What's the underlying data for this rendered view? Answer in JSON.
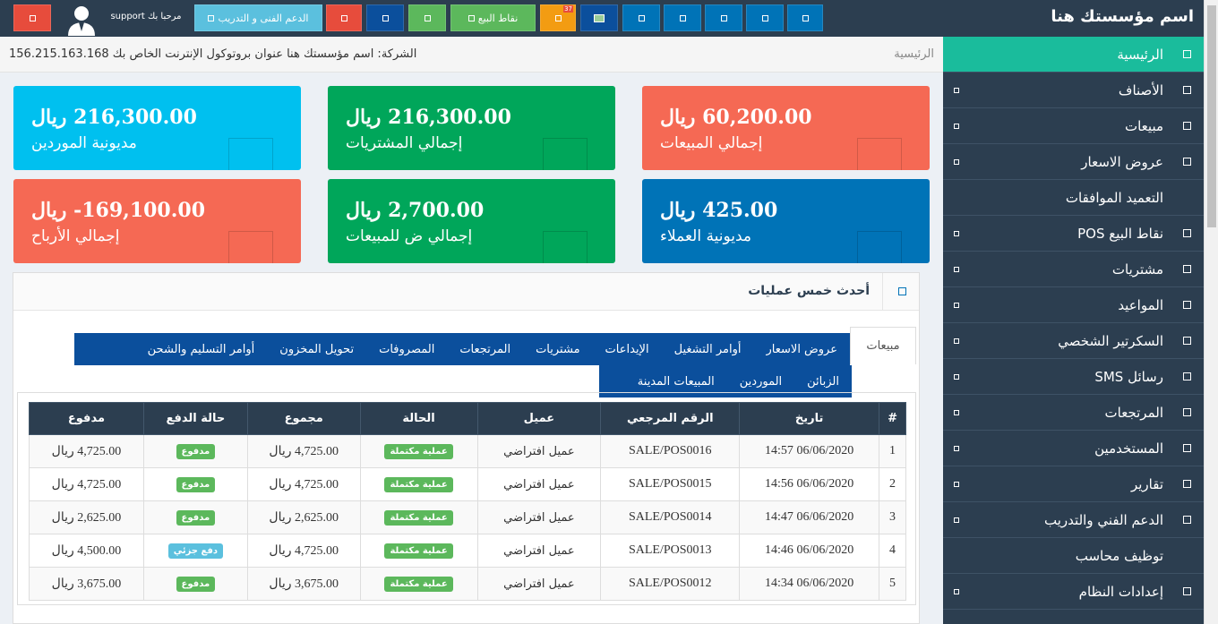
{
  "brand": "اسم مؤسستك هنا",
  "topbar": {
    "welcome": "مرحبا بك support",
    "support_btn": "الدعم الفنى و التدريب",
    "pos_btn": "نقاط البيع",
    "notif_count": "37"
  },
  "sidebar": {
    "items": [
      {
        "label": "الرئيسية"
      },
      {
        "label": "الأصناف"
      },
      {
        "label": "مبيعات"
      },
      {
        "label": "عروض الاسعار"
      },
      {
        "label": "التعميد الموافقات"
      },
      {
        "label": "نقاط البيع POS"
      },
      {
        "label": "مشتريات"
      },
      {
        "label": "المواعيد"
      },
      {
        "label": "السكرتير الشخصي"
      },
      {
        "label": "رسائل SMS"
      },
      {
        "label": "المرتجعات"
      },
      {
        "label": "المستخدمين"
      },
      {
        "label": "تقارير"
      },
      {
        "label": "الدعم الفني والتدريب"
      },
      {
        "label": "توظيف محاسب"
      },
      {
        "label": "إعدادات النظام"
      }
    ]
  },
  "crumb": {
    "home": "الرئيسية",
    "info": "الشركة: اسم مؤسستك هنا عنوان بروتوكول الإنترنت الخاص بك 156.215.163.168"
  },
  "cards": [
    {
      "value": "216,300.00 ريال",
      "label": "مديونية الموردين"
    },
    {
      "value": "216,300.00 ريال",
      "label": "إجمالي المشتريات"
    },
    {
      "value": "60,200.00 ريال",
      "label": "إجمالي المبيعات"
    },
    {
      "value": "169,100.00- ريال",
      "label": "إجمالي الأرباح"
    },
    {
      "value": "2,700.00 ريال",
      "label": "إجمالي ض للمبيعات"
    },
    {
      "value": "425.00 ريال",
      "label": "مديونية العملاء"
    }
  ],
  "panel": {
    "title": "أحدث خمس عمليات",
    "active_tab": "مبيعات",
    "tabs_row1": [
      "عروض الاسعار",
      "أوامر التشغيل",
      "الإيداعات",
      "مشتريات",
      "المرتجعات",
      "المصروفات",
      "تحويل المخزون",
      "أوامر التسليم والشحن"
    ],
    "tabs_row2": [
      "الزبائن",
      "الموردين",
      "المبيعات المدينة"
    ]
  },
  "table": {
    "headers": [
      "#",
      "تاريخ",
      "الرقم المرجعي",
      "عميل",
      "الحالة",
      "مجموع",
      "حالة الدفع",
      "مدفوع"
    ],
    "rows": [
      {
        "n": "1",
        "date": "06/06/2020 14:57",
        "ref": "SALE/POS0016",
        "customer": "عميل افتراضي",
        "status": "عملية مكتملة",
        "total": "4,725.00 ريال",
        "pay_status": "مدفوع",
        "paid": "4,725.00 ريال"
      },
      {
        "n": "2",
        "date": "06/06/2020 14:56",
        "ref": "SALE/POS0015",
        "customer": "عميل افتراضي",
        "status": "عملية مكتملة",
        "total": "4,725.00 ريال",
        "pay_status": "مدفوع",
        "paid": "4,725.00 ريال"
      },
      {
        "n": "3",
        "date": "06/06/2020 14:47",
        "ref": "SALE/POS0014",
        "customer": "عميل افتراضي",
        "status": "عملية مكتملة",
        "total": "2,625.00 ريال",
        "pay_status": "مدفوع",
        "paid": "2,625.00 ريال"
      },
      {
        "n": "4",
        "date": "06/06/2020 14:46",
        "ref": "SALE/POS0013",
        "customer": "عميل افتراضي",
        "status": "عملية مكتملة",
        "total": "4,725.00 ريال",
        "pay_status": "دفع جزئي",
        "paid": "4,500.00 ريال"
      },
      {
        "n": "5",
        "date": "06/06/2020 14:34",
        "ref": "SALE/POS0012",
        "customer": "عميل افتراضي",
        "status": "عملية مكتملة",
        "total": "3,675.00 ريال",
        "pay_status": "مدفوع",
        "paid": "3,675.00 ريال"
      }
    ]
  }
}
